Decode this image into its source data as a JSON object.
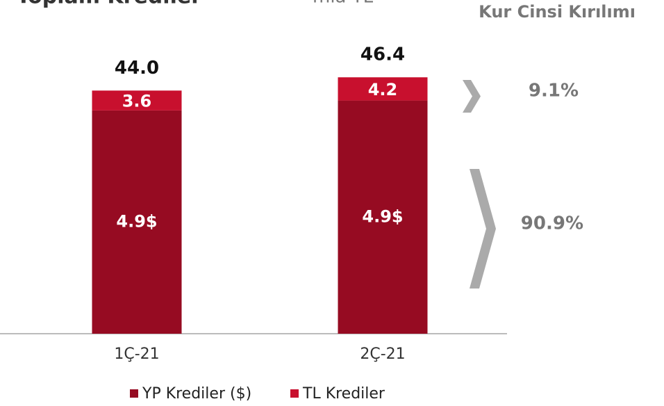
{
  "chart_data": {
    "type": "stacked_bar",
    "title": "Toplam Krediler",
    "subtitle": "mia TL",
    "categories": [
      "1Ç-21",
      "2Ç-21"
    ],
    "series": [
      {
        "name": "YP Krediler ($)",
        "color": "#960b22",
        "values": [
          40.4,
          42.2
        ],
        "value_labels": [
          "4.9$",
          "4.9$"
        ]
      },
      {
        "name": "TL Krediler",
        "color": "#c8102e",
        "values": [
          3.6,
          4.2
        ]
      }
    ],
    "totals": [
      44.0,
      46.4
    ],
    "total_labels": [
      "44.0",
      "46.4"
    ],
    "ylim": [
      0,
      58
    ],
    "breakdown": {
      "title": "Kur Cinsi Kırılımı",
      "values": [
        9.1,
        90.9
      ],
      "value_labels": [
        "9.1%",
        "90.9%"
      ]
    }
  }
}
